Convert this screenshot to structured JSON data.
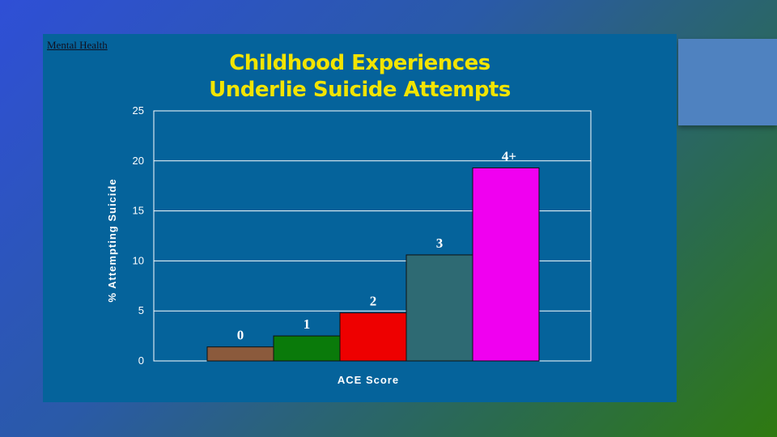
{
  "tag": "Mental Health",
  "title_lines": [
    "Childhood Experiences",
    "Underlie Suicide Attempts"
  ],
  "chart_data": {
    "type": "bar",
    "categories": [
      "0",
      "1",
      "2",
      "3",
      "4+"
    ],
    "values": [
      1.4,
      2.5,
      4.8,
      10.6,
      19.3
    ],
    "colors": [
      "#8b5a3c",
      "#0a7a0a",
      "#ee0000",
      "#2e6a73",
      "#f000f0"
    ],
    "xlabel": "ACE Score",
    "ylabel": "% Attempting Suicide",
    "ylim": [
      0,
      25
    ],
    "yticks": [
      0,
      5,
      10,
      15,
      20,
      25
    ],
    "grid": true
  }
}
